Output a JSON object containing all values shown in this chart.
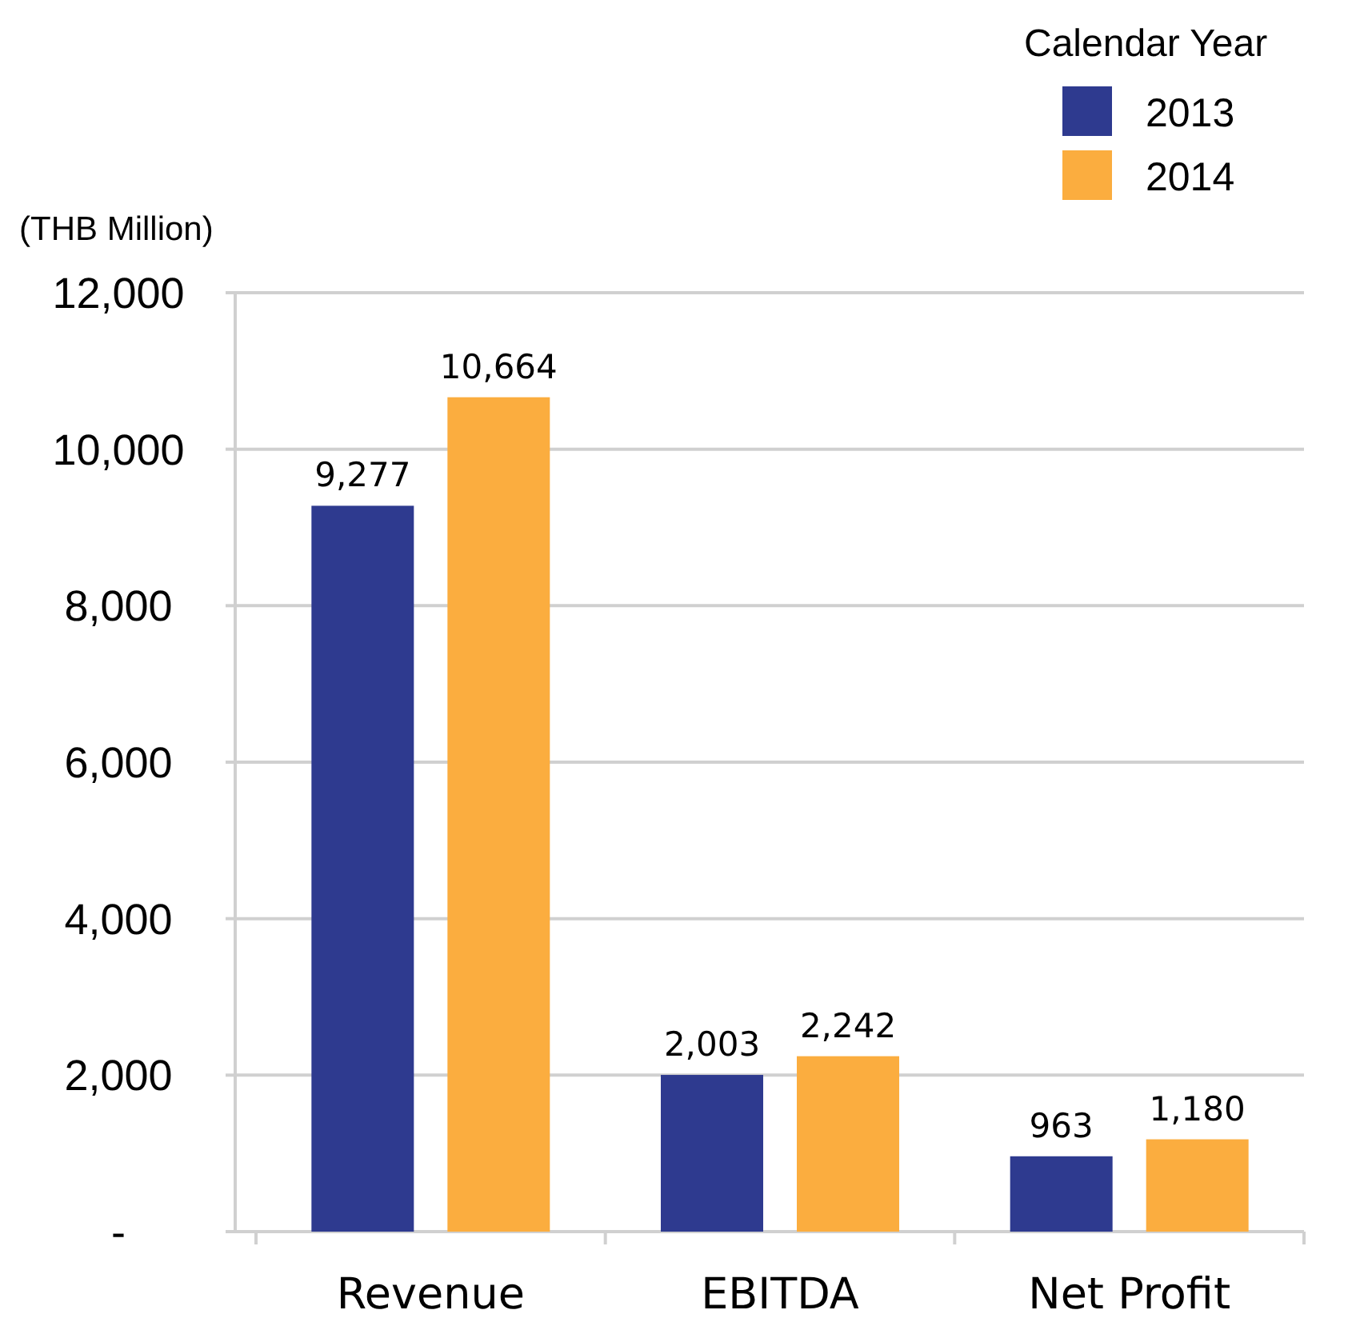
{
  "chart_data": {
    "type": "bar",
    "ylabel": "(THB Million)",
    "legend_title": "Calendar Year",
    "categories": [
      "Revenue",
      "EBITDA",
      "Net Profit"
    ],
    "series": [
      {
        "name": "2013",
        "color": "#2e3a8f",
        "values": [
          9277,
          2003,
          963
        ],
        "value_labels": [
          "9,277",
          "2,003",
          "963"
        ]
      },
      {
        "name": "2014",
        "color": "#fbad3f",
        "values": [
          10664,
          2242,
          1180
        ],
        "value_labels": [
          "10,664",
          "2,242",
          "1,180"
        ]
      }
    ],
    "ylim": [
      0,
      12000
    ],
    "yticks": [
      {
        "value": 0,
        "label": "-"
      },
      {
        "value": 2000,
        "label": "2,000"
      },
      {
        "value": 4000,
        "label": "4,000"
      },
      {
        "value": 6000,
        "label": "6,000"
      },
      {
        "value": 8000,
        "label": "8,000"
      },
      {
        "value": 10000,
        "label": "10,000"
      },
      {
        "value": 12000,
        "label": "12,000"
      }
    ],
    "grid": "y",
    "legend": "top right"
  }
}
